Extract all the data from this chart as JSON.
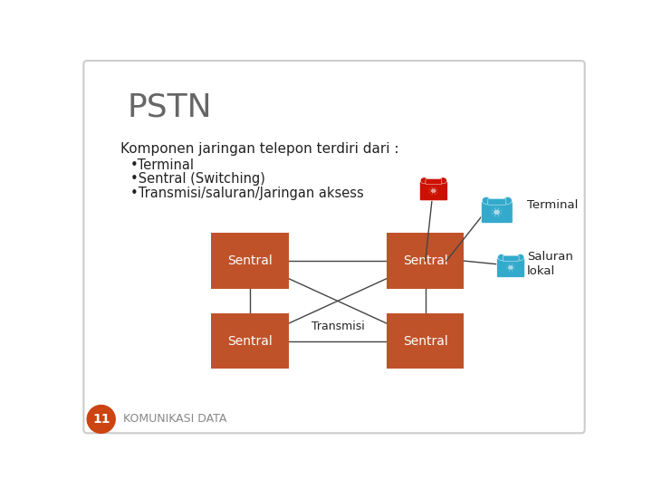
{
  "title": "PSTN",
  "slide_bg": "#ffffff",
  "title_color": "#666666",
  "title_fontsize": 26,
  "bullet_header": "Komponen jaringan telepon terdiri dari :",
  "bullets": [
    "•Terminal",
    "•Sentral (Switching)",
    "•Transmisi/saluran/Jaringan aksess"
  ],
  "box_color": "#c0522a",
  "box_text_color": "#ffffff",
  "box_label": "Sentral",
  "transmisi_label": "Transmisi",
  "terminal_label": "Terminal",
  "saluran_label": "Saluran\nlokal",
  "footer_text": "KOMUNIKASI DATA",
  "footer_num": "11",
  "footer_circle_color": "#cc4411",
  "text_color": "#222222",
  "line_color": "#444444",
  "border_color": "#cccccc"
}
